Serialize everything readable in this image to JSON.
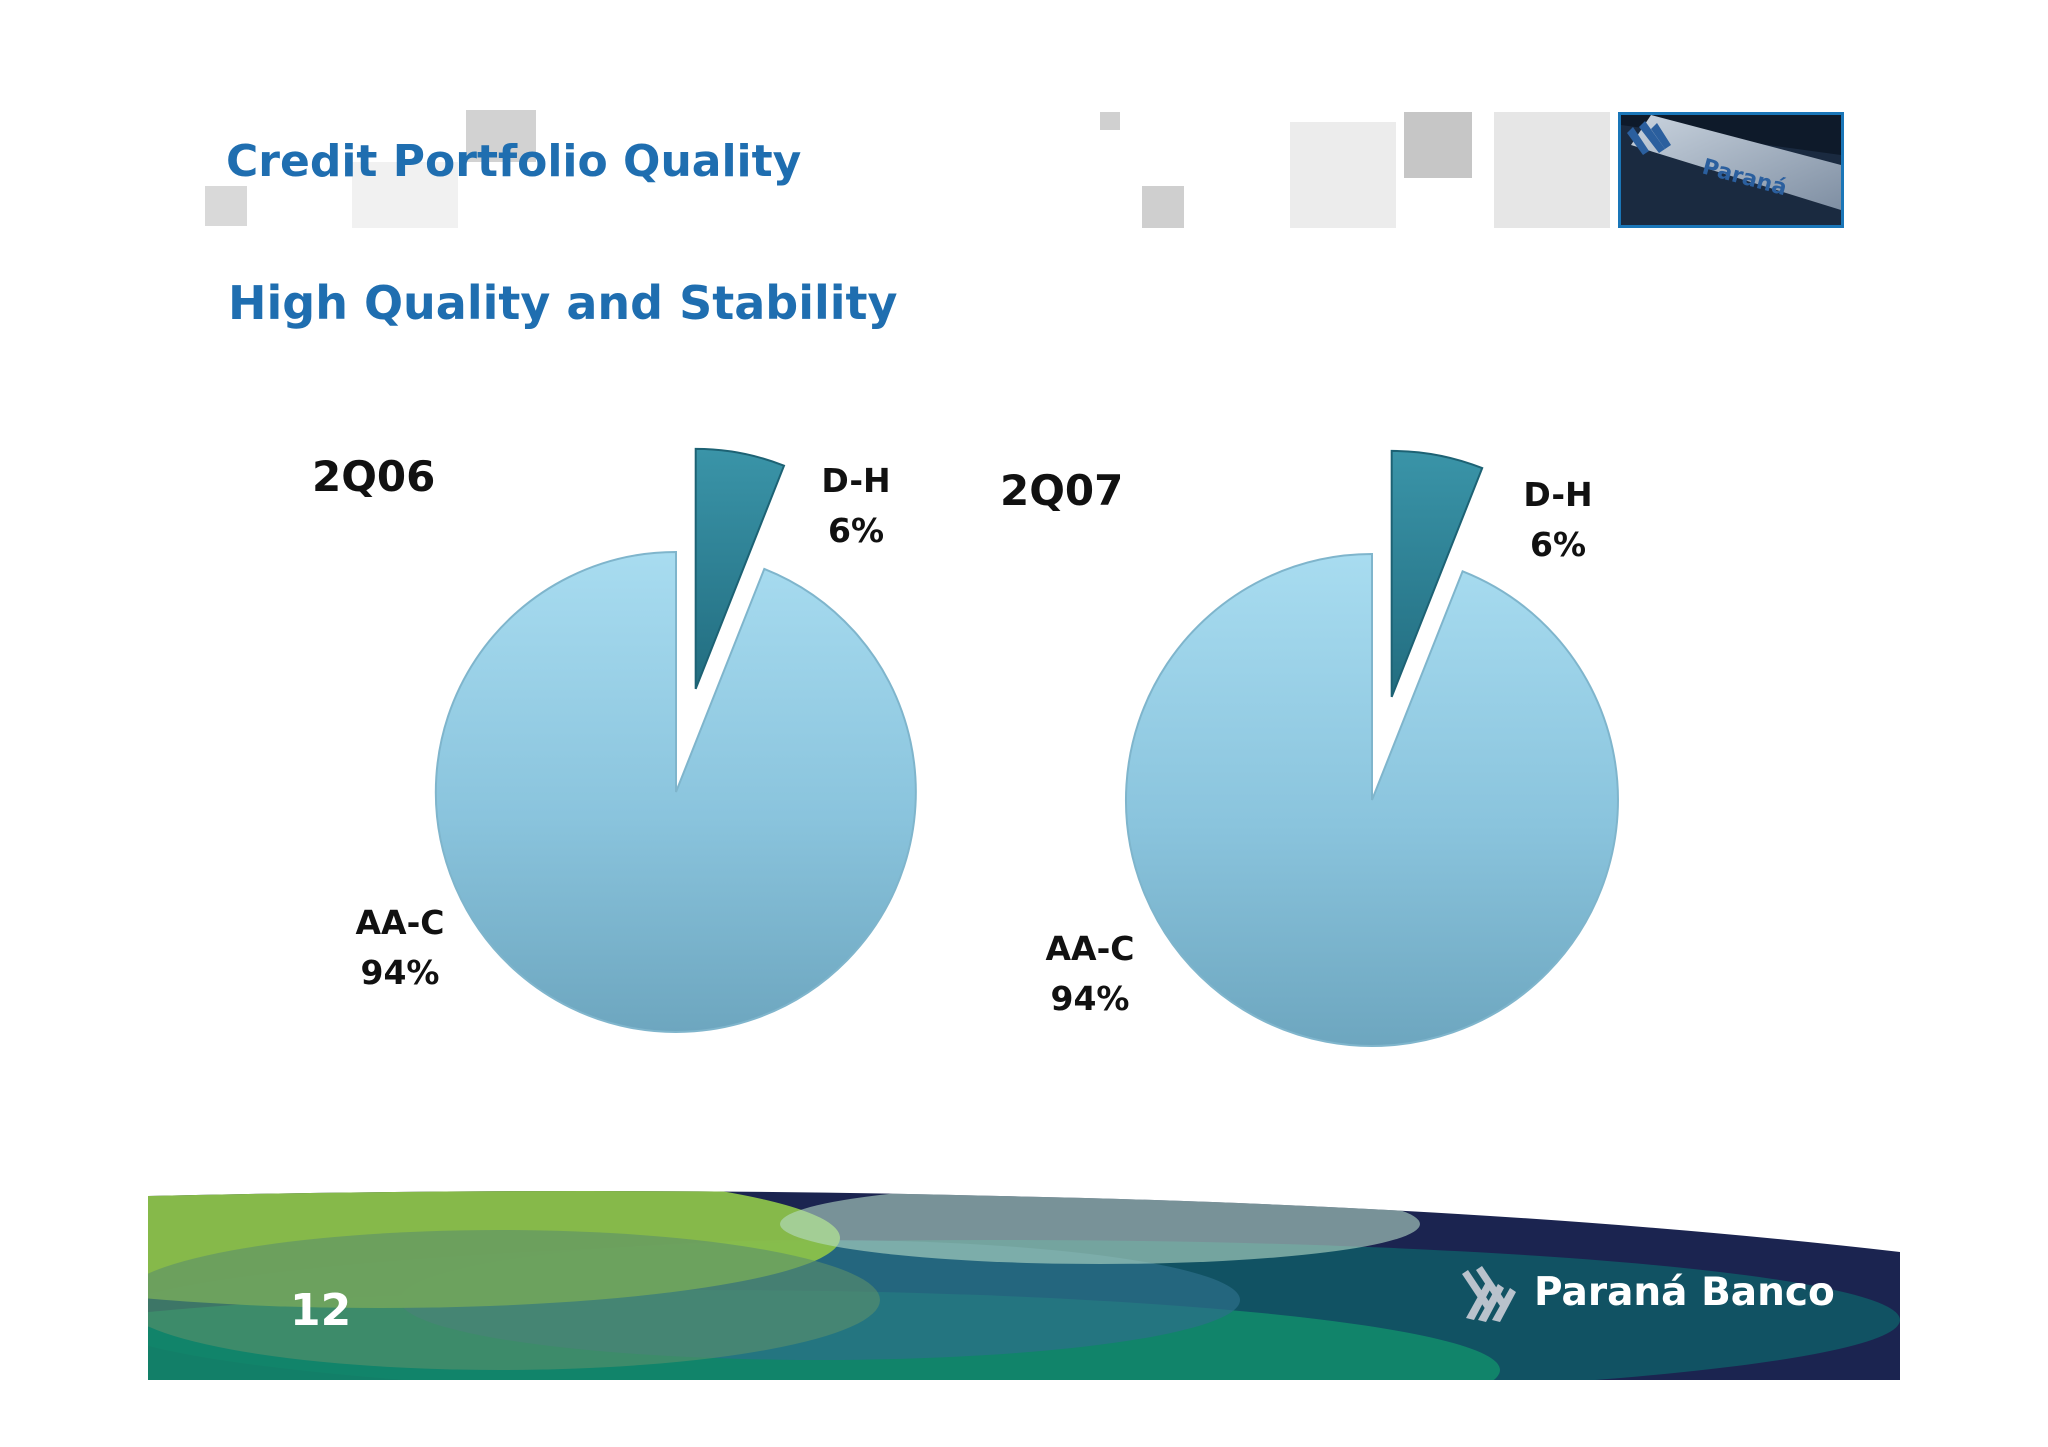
{
  "slide": {
    "title": "Credit Portfolio Quality",
    "subtitle": "High Quality and Stability",
    "page_number": "12",
    "brand_name": "Paraná Banco"
  },
  "colors": {
    "title": "#1f6eb0",
    "slice_main": "#8ac4dd",
    "slice_main_light": "#a8dcf0",
    "slice_main_dark": "#6da6bf",
    "slice_small": "#2b7f93",
    "footer_navy": "#1b2450",
    "footer_green": "#8cc24a",
    "footer_teal": "#128a6a"
  },
  "chart_data": [
    {
      "type": "pie",
      "title": "2Q06",
      "slices": [
        {
          "label": "D-H",
          "value": 6,
          "value_label": "6%",
          "exploded": true
        },
        {
          "label": "AA-C",
          "value": 94,
          "value_label": "94%",
          "exploded": false
        }
      ]
    },
    {
      "type": "pie",
      "title": "2Q07",
      "slices": [
        {
          "label": "D-H",
          "value": 6,
          "value_label": "6%",
          "exploded": true
        },
        {
          "label": "AA-C",
          "value": 94,
          "value_label": "94%",
          "exploded": false
        }
      ]
    }
  ]
}
